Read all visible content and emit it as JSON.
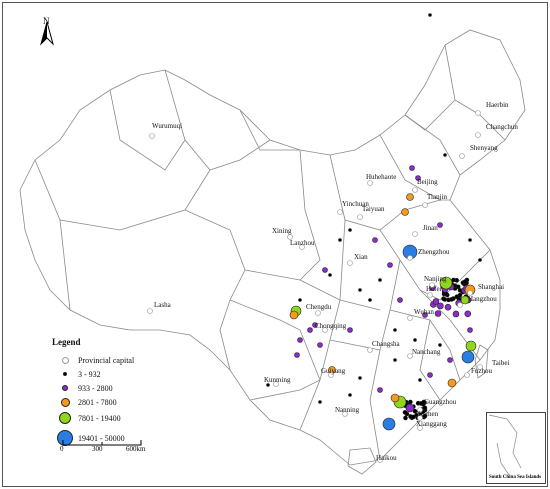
{
  "map": {
    "north_label": "N",
    "legend": {
      "title": "Legend",
      "items": [
        {
          "label": "Provincial capital",
          "color": "#ffffff",
          "symbol": "capital"
        },
        {
          "label": "3 - 932",
          "color": "#000000",
          "symbol": "dot-xs"
        },
        {
          "label": "933 - 2800",
          "color": "#8b2cc9",
          "symbol": "dot-s"
        },
        {
          "label": "2801 - 7800",
          "color": "#f39a1f",
          "symbol": "dot-m"
        },
        {
          "label": "7801 - 19400",
          "color": "#8fd61c",
          "symbol": "dot-l"
        },
        {
          "label": "19401 - 50000",
          "color": "#2a7de1",
          "symbol": "dot-xl"
        }
      ]
    },
    "scale": {
      "ticks": [
        "0",
        "300",
        "600km"
      ]
    },
    "inset_label": "South China Sea Islands",
    "cities": [
      {
        "name": "Haerbin"
      },
      {
        "name": "Changchun"
      },
      {
        "name": "Shenyang"
      },
      {
        "name": "Wurumuqi"
      },
      {
        "name": "Huhehaote"
      },
      {
        "name": "Beijing"
      },
      {
        "name": "Tianjin"
      },
      {
        "name": "Taiyuan"
      },
      {
        "name": "Yinchuan"
      },
      {
        "name": "Xining"
      },
      {
        "name": "Lanzhou"
      },
      {
        "name": "Jinan"
      },
      {
        "name": "Zhengzhou"
      },
      {
        "name": "Xian"
      },
      {
        "name": "Lasha"
      },
      {
        "name": "Shanghai"
      },
      {
        "name": "Hangzhou"
      },
      {
        "name": "Nanjing"
      },
      {
        "name": "Hefei"
      },
      {
        "name": "Wuhan"
      },
      {
        "name": "Chengdu"
      },
      {
        "name": "Chongqing"
      },
      {
        "name": "Changsha"
      },
      {
        "name": "Nanchang"
      },
      {
        "name": "Fuzhou"
      },
      {
        "name": "Taibei"
      },
      {
        "name": "Guiyang"
      },
      {
        "name": "Kunming"
      },
      {
        "name": "Nanning"
      },
      {
        "name": "Guangzhou"
      },
      {
        "name": "Xiamen"
      },
      {
        "name": "Xianggang"
      },
      {
        "name": "Haikou"
      }
    ],
    "colors": {
      "border": "#8a8a8a",
      "capital": "#ffffff",
      "small": "#000000",
      "purple": "#8b2cc9",
      "orange": "#f39a1f",
      "green": "#8fd61c",
      "blue": "#2a7de1"
    }
  }
}
